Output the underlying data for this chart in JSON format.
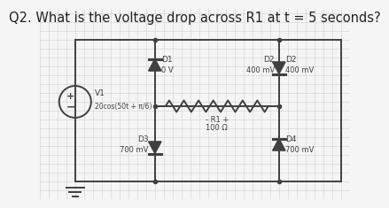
{
  "title": "Q2. What is the voltage drop across R1 at t = 5 seconds?",
  "title_fontsize": 10.5,
  "bg_color": "#f5f5f5",
  "grid_color": "#d0d0d0",
  "line_color": "#404040",
  "line_width": 1.4,
  "circuit": {
    "source_label": "V1",
    "source_formula": "20cos(50t + π/6)",
    "d1_label_a": "D1",
    "d1_label_b": "0 V",
    "d2_label_a": "D2",
    "d2_label_b": "400 mV",
    "d3_label_a": "D3",
    "d3_label_b": "700 mV",
    "d4_label_a": "D4",
    "d4_label_b": "700 mV",
    "r1_label_a": "- R1 +",
    "r1_label_b": "100 Ω"
  }
}
